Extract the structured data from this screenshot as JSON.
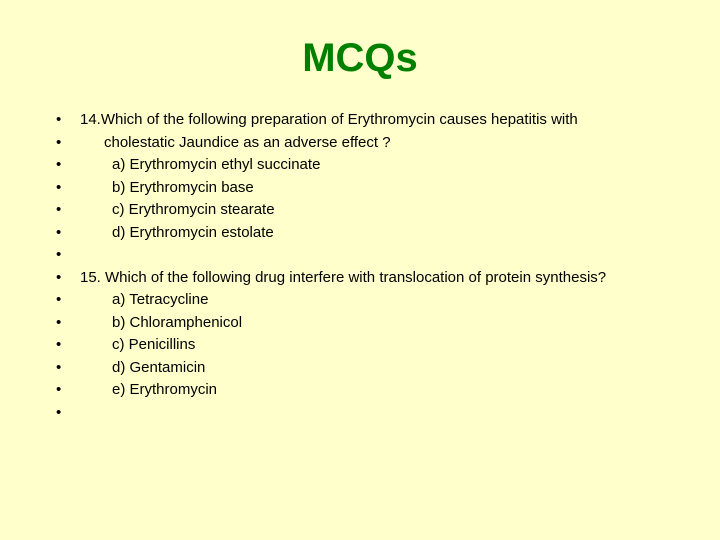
{
  "slide": {
    "title": "MCQs",
    "title_color": "#008000",
    "background_color": "#ffffcc",
    "bullet_char": "•",
    "body_font_size": 15,
    "title_font_size": 40,
    "lines": [
      {
        "text": "14.Which of the following preparation of Erythromycin causes hepatitis with",
        "indent": 0
      },
      {
        "text": "cholestatic Jaundice as an adverse effect ?",
        "indent": 1
      },
      {
        "text": "a) Erythromycin ethyl succinate",
        "indent": 2
      },
      {
        "text": "b) Erythromycin base",
        "indent": 2
      },
      {
        "text": "c) Erythromycin stearate",
        "indent": 2
      },
      {
        "text": "d) Erythromycin estolate",
        "indent": 2
      },
      {
        "text": "",
        "indent": 0
      },
      {
        "text": "15. Which of the following drug interfere with translocation of protein synthesis?",
        "indent": 0
      },
      {
        "text": "a) Tetracycline",
        "indent": 2
      },
      {
        "text": "b) Chloramphenicol",
        "indent": 2
      },
      {
        "text": "c) Penicillins",
        "indent": 2
      },
      {
        "text": "d) Gentamicin",
        "indent": 2
      },
      {
        "text": "e) Erythromycin",
        "indent": 2
      },
      {
        "text": "",
        "indent": 0
      }
    ]
  }
}
